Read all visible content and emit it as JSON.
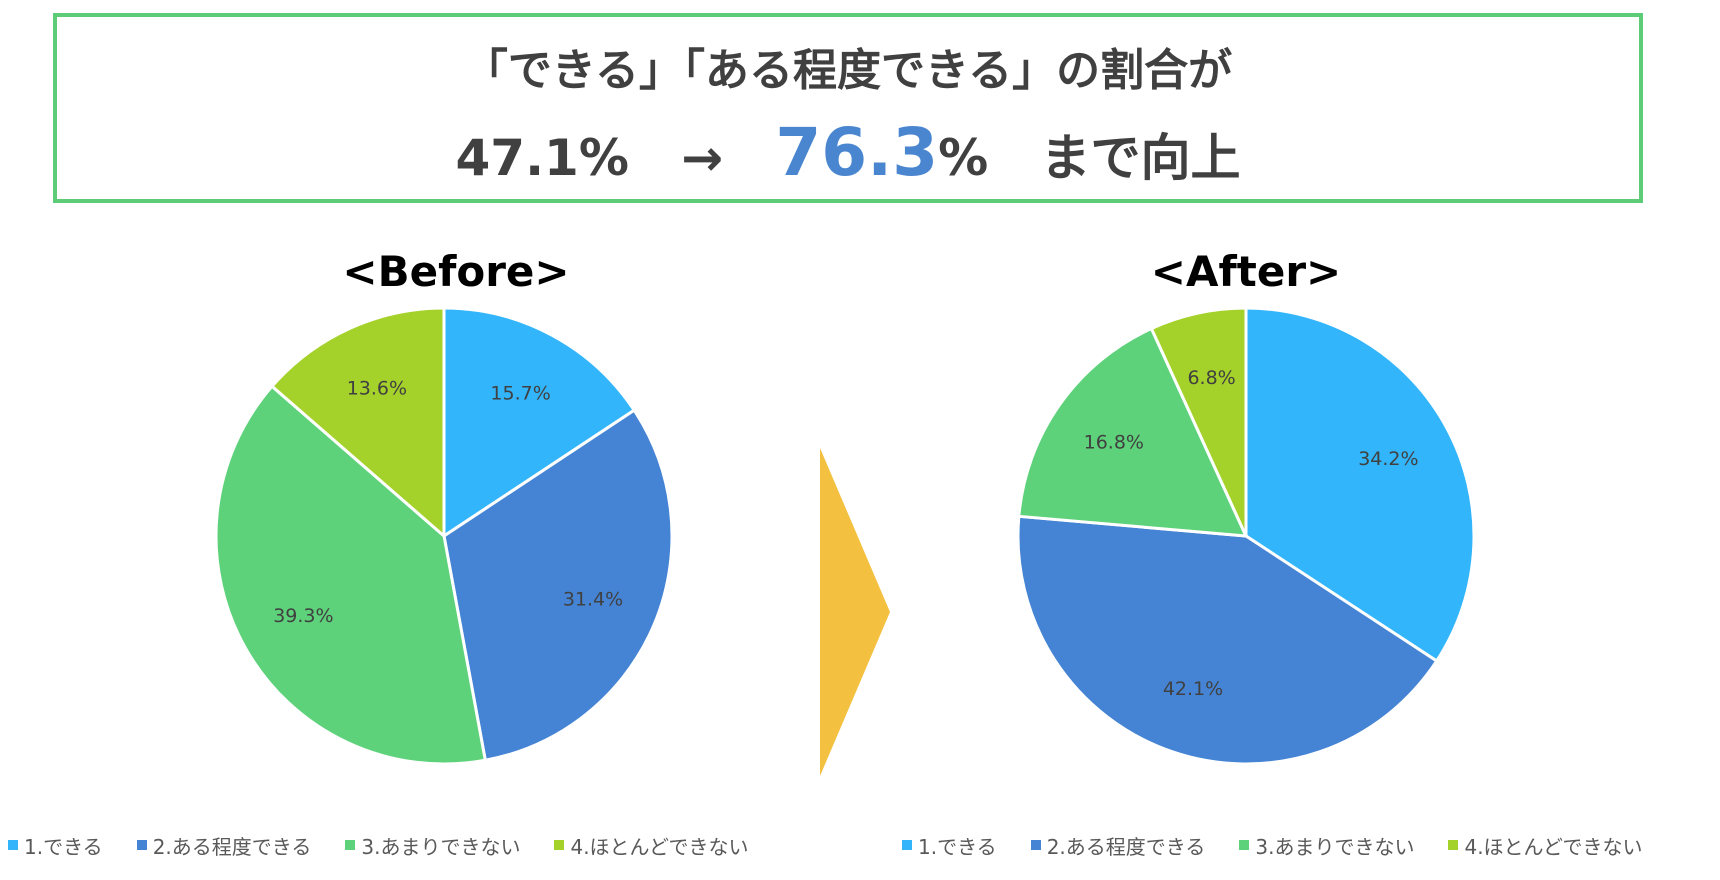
{
  "headline": {
    "line1": "「できる」「ある程度できる」の割合が",
    "before_value": "47.1%",
    "arrow": "→",
    "after_number": "76.3",
    "after_unit": "%",
    "suffix": "まで向上"
  },
  "chart_data": [
    {
      "type": "pie",
      "title": "<Before>",
      "categories": [
        "1.できる",
        "2.ある程度できる",
        "3.あまりできない",
        "4.ほとんどできない"
      ],
      "values": [
        15.7,
        31.4,
        39.3,
        13.6
      ],
      "labels": [
        "15.7%",
        "31.4%",
        "39.3%",
        "13.6%"
      ],
      "colors": [
        "#33b5fb",
        "#4584d4",
        "#5ed27a",
        "#a5d12b"
      ],
      "legend": "bottom"
    },
    {
      "type": "pie",
      "title": "<After>",
      "categories": [
        "1.できる",
        "2.ある程度できる",
        "3.あまりできない",
        "4.ほとんどできない"
      ],
      "values": [
        34.2,
        42.1,
        16.8,
        6.8
      ],
      "labels": [
        "34.2%",
        "42.1%",
        "16.8%",
        "6.8%"
      ],
      "colors": [
        "#33b5fb",
        "#4584d4",
        "#5ed27a",
        "#a5d12b"
      ],
      "legend": "bottom"
    }
  ],
  "arrow_color": "#f4c03f"
}
